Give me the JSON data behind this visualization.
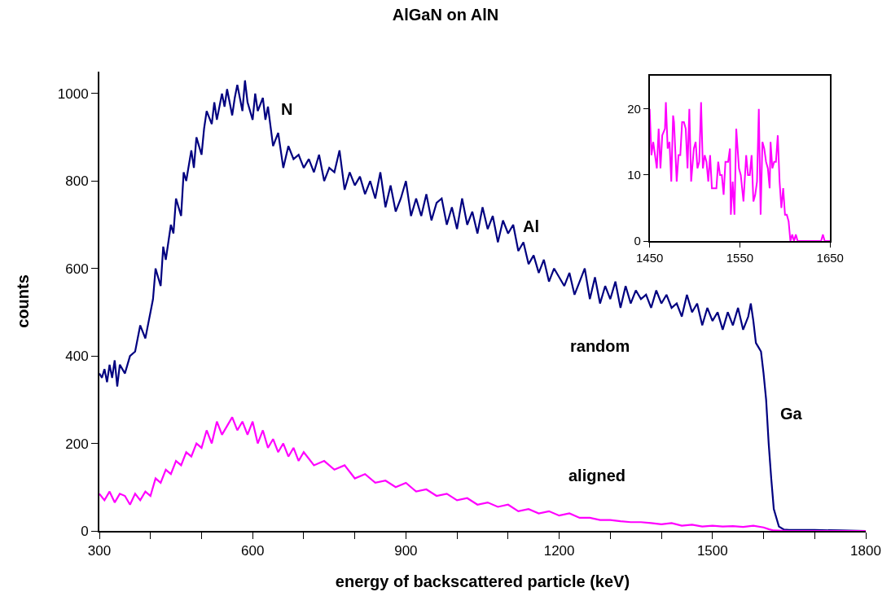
{
  "chart_data": [
    {
      "type": "line",
      "title": "AlGaN on AlN",
      "xlabel": "energy of backscattered particle (keV)",
      "ylabel": "counts",
      "xlim": [
        300,
        1800
      ],
      "xticks": [
        300,
        {
          "value": 400,
          "label": null
        },
        {
          "value": 500,
          "label": null
        },
        600,
        {
          "value": 700,
          "label": null
        },
        {
          "value": 800,
          "label": null
        },
        900,
        {
          "value": 1000,
          "label": null
        },
        {
          "value": 1100,
          "label": null
        },
        1200,
        {
          "value": 1300,
          "label": null
        },
        {
          "value": 1400,
          "label": null
        },
        1500,
        {
          "value": 1600,
          "label": null
        },
        {
          "value": 1700,
          "label": null
        },
        1800
      ],
      "ylim": [
        0,
        1050
      ],
      "yticks": [
        0,
        200,
        400,
        600,
        800,
        1000
      ],
      "grid": false,
      "series": [
        {
          "color": "#000080",
          "x": [
            300,
            305,
            310,
            315,
            320,
            325,
            330,
            335,
            340,
            350,
            360,
            370,
            380,
            390,
            400,
            405,
            410,
            420,
            425,
            430,
            440,
            445,
            450,
            460,
            465,
            470,
            480,
            485,
            490,
            500,
            505,
            510,
            520,
            525,
            530,
            540,
            545,
            550,
            560,
            565,
            570,
            580,
            585,
            590,
            600,
            605,
            610,
            620,
            625,
            630,
            640,
            650,
            655,
            660,
            670,
            680,
            690,
            700,
            710,
            720,
            730,
            740,
            750,
            760,
            770,
            780,
            790,
            800,
            810,
            820,
            830,
            840,
            850,
            860,
            870,
            880,
            890,
            900,
            910,
            920,
            930,
            940,
            950,
            960,
            970,
            980,
            990,
            1000,
            1010,
            1020,
            1030,
            1040,
            1050,
            1060,
            1070,
            1080,
            1090,
            1100,
            1110,
            1120,
            1130,
            1140,
            1150,
            1160,
            1170,
            1180,
            1190,
            1200,
            1210,
            1220,
            1230,
            1240,
            1250,
            1260,
            1270,
            1280,
            1290,
            1300,
            1310,
            1320,
            1330,
            1340,
            1350,
            1360,
            1370,
            1380,
            1390,
            1400,
            1410,
            1420,
            1430,
            1440,
            1450,
            1460,
            1470,
            1480,
            1490,
            1500,
            1510,
            1520,
            1530,
            1540,
            1550,
            1560,
            1570,
            1575,
            1580,
            1585,
            1590,
            1595,
            1600,
            1605,
            1610,
            1615,
            1620,
            1630,
            1640,
            1650,
            1700,
            1750,
            1800
          ],
          "values": [
            360,
            350,
            370,
            340,
            380,
            350,
            390,
            330,
            380,
            360,
            400,
            410,
            470,
            440,
            500,
            530,
            600,
            560,
            650,
            620,
            700,
            680,
            760,
            720,
            820,
            800,
            870,
            830,
            900,
            860,
            920,
            960,
            930,
            980,
            940,
            1000,
            970,
            1010,
            950,
            990,
            1020,
            960,
            1030,
            980,
            940,
            1000,
            960,
            990,
            940,
            970,
            880,
            910,
            870,
            830,
            880,
            850,
            860,
            830,
            850,
            820,
            860,
            800,
            830,
            820,
            870,
            780,
            820,
            790,
            810,
            770,
            800,
            760,
            820,
            740,
            790,
            730,
            760,
            800,
            720,
            760,
            720,
            770,
            710,
            750,
            760,
            700,
            740,
            690,
            760,
            700,
            730,
            680,
            740,
            690,
            720,
            660,
            710,
            680,
            700,
            640,
            660,
            610,
            630,
            590,
            620,
            570,
            600,
            580,
            560,
            590,
            540,
            570,
            600,
            530,
            580,
            520,
            560,
            530,
            570,
            510,
            560,
            520,
            550,
            530,
            540,
            510,
            550,
            520,
            540,
            510,
            520,
            490,
            540,
            500,
            520,
            470,
            510,
            480,
            500,
            460,
            500,
            470,
            510,
            460,
            490,
            520,
            480,
            430,
            420,
            410,
            360,
            300,
            200,
            120,
            50,
            10,
            3,
            2,
            2,
            1,
            0
          ]
        },
        {
          "color": "#ff00ff",
          "x": [
            300,
            310,
            320,
            330,
            340,
            350,
            360,
            370,
            380,
            390,
            400,
            410,
            420,
            430,
            440,
            450,
            460,
            470,
            480,
            490,
            500,
            510,
            520,
            530,
            540,
            550,
            560,
            570,
            580,
            590,
            600,
            610,
            620,
            630,
            640,
            650,
            660,
            670,
            680,
            690,
            700,
            720,
            740,
            760,
            780,
            800,
            820,
            840,
            860,
            880,
            900,
            920,
            940,
            960,
            980,
            1000,
            1020,
            1040,
            1060,
            1080,
            1100,
            1120,
            1140,
            1160,
            1180,
            1200,
            1220,
            1240,
            1260,
            1280,
            1300,
            1320,
            1340,
            1360,
            1380,
            1400,
            1420,
            1440,
            1460,
            1480,
            1500,
            1520,
            1540,
            1560,
            1580,
            1600,
            1610,
            1620,
            1650,
            1700,
            1750,
            1800
          ],
          "values": [
            85,
            70,
            90,
            65,
            85,
            80,
            60,
            85,
            70,
            90,
            80,
            120,
            110,
            140,
            130,
            160,
            150,
            180,
            170,
            200,
            190,
            230,
            200,
            250,
            220,
            240,
            260,
            230,
            250,
            220,
            250,
            200,
            230,
            190,
            210,
            180,
            200,
            170,
            190,
            160,
            180,
            150,
            160,
            140,
            150,
            120,
            130,
            110,
            115,
            100,
            110,
            90,
            95,
            80,
            85,
            70,
            75,
            60,
            65,
            55,
            60,
            45,
            50,
            40,
            45,
            35,
            40,
            30,
            30,
            25,
            25,
            22,
            20,
            20,
            18,
            15,
            18,
            12,
            14,
            10,
            12,
            10,
            11,
            9,
            12,
            8,
            4,
            1,
            0,
            0,
            0,
            0
          ]
        }
      ],
      "annotations": [
        "N",
        "Al",
        "random",
        "Ga",
        "aligned"
      ]
    },
    {
      "type": "line",
      "xlim": [
        1450,
        1650
      ],
      "xticks": [
        1450,
        1550,
        1650
      ],
      "ylim": [
        0,
        25
      ],
      "yticks": [
        0,
        10,
        20
      ],
      "grid": false,
      "series": [
        {
          "color": "#ff00ff",
          "x": [
            1450,
            1452,
            1454,
            1458,
            1460,
            1462,
            1464,
            1467,
            1468,
            1470,
            1472,
            1474,
            1476,
            1477,
            1480,
            1482,
            1484,
            1486,
            1488,
            1490,
            1492,
            1494,
            1496,
            1499,
            1501,
            1503,
            1505,
            1507,
            1509,
            1511,
            1513,
            1515,
            1517,
            1519,
            1524,
            1526,
            1528,
            1530,
            1532,
            1534,
            1537,
            1539,
            1540,
            1542,
            1544,
            1546,
            1549,
            1551,
            1554,
            1557,
            1559,
            1561,
            1563,
            1565,
            1567,
            1569,
            1571,
            1573,
            1575,
            1577,
            1579,
            1581,
            1583,
            1584,
            1586,
            1588,
            1590,
            1592,
            1594,
            1596,
            1598,
            1600,
            1602,
            1604,
            1606,
            1608,
            1610,
            1612,
            1614,
            1640,
            1642,
            1644,
            1650
          ],
          "values": [
            20,
            13,
            15,
            11,
            17,
            11,
            16,
            17,
            21,
            14,
            15,
            9,
            19,
            18,
            9,
            13,
            13,
            18,
            18,
            17,
            11,
            20,
            9,
            14,
            15,
            11,
            12,
            21,
            11,
            13,
            12,
            9,
            13,
            8,
            8,
            12,
            10,
            10,
            7,
            12,
            12,
            14,
            4,
            9,
            4,
            17,
            11,
            10,
            6,
            13,
            10,
            10,
            13,
            6,
            7,
            9,
            20,
            4,
            15,
            14,
            12,
            11,
            8,
            15,
            11,
            12,
            12,
            16,
            9,
            5,
            8,
            4,
            4,
            3,
            0,
            1,
            0,
            1,
            0,
            0,
            1,
            0,
            0
          ]
        }
      ]
    }
  ]
}
